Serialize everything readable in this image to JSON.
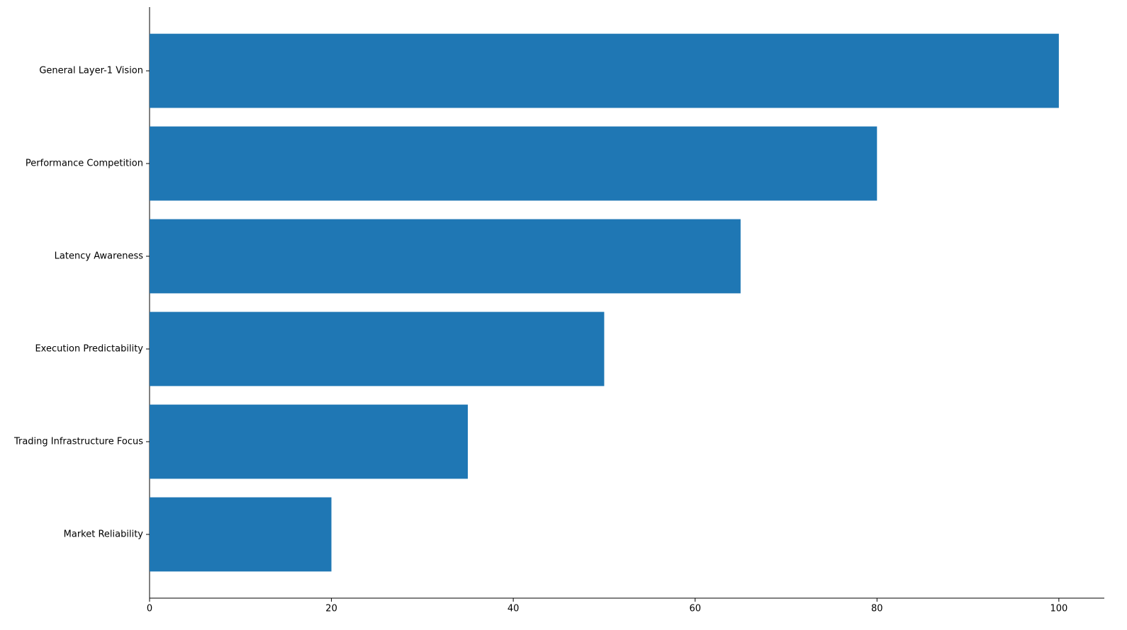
{
  "chart_data": {
    "type": "barh",
    "categories": [
      "General Layer-1 Vision",
      "Performance Competition",
      "Latency Awareness",
      "Execution Predictability",
      "Trading Infrastructure Focus",
      "Market Reliability"
    ],
    "values": [
      100,
      80,
      65,
      50,
      35,
      20
    ],
    "color": "#1f77b4",
    "xlim": [
      0,
      105
    ],
    "xticks": [
      0,
      20,
      40,
      60,
      80,
      100
    ],
    "grid": false
  }
}
